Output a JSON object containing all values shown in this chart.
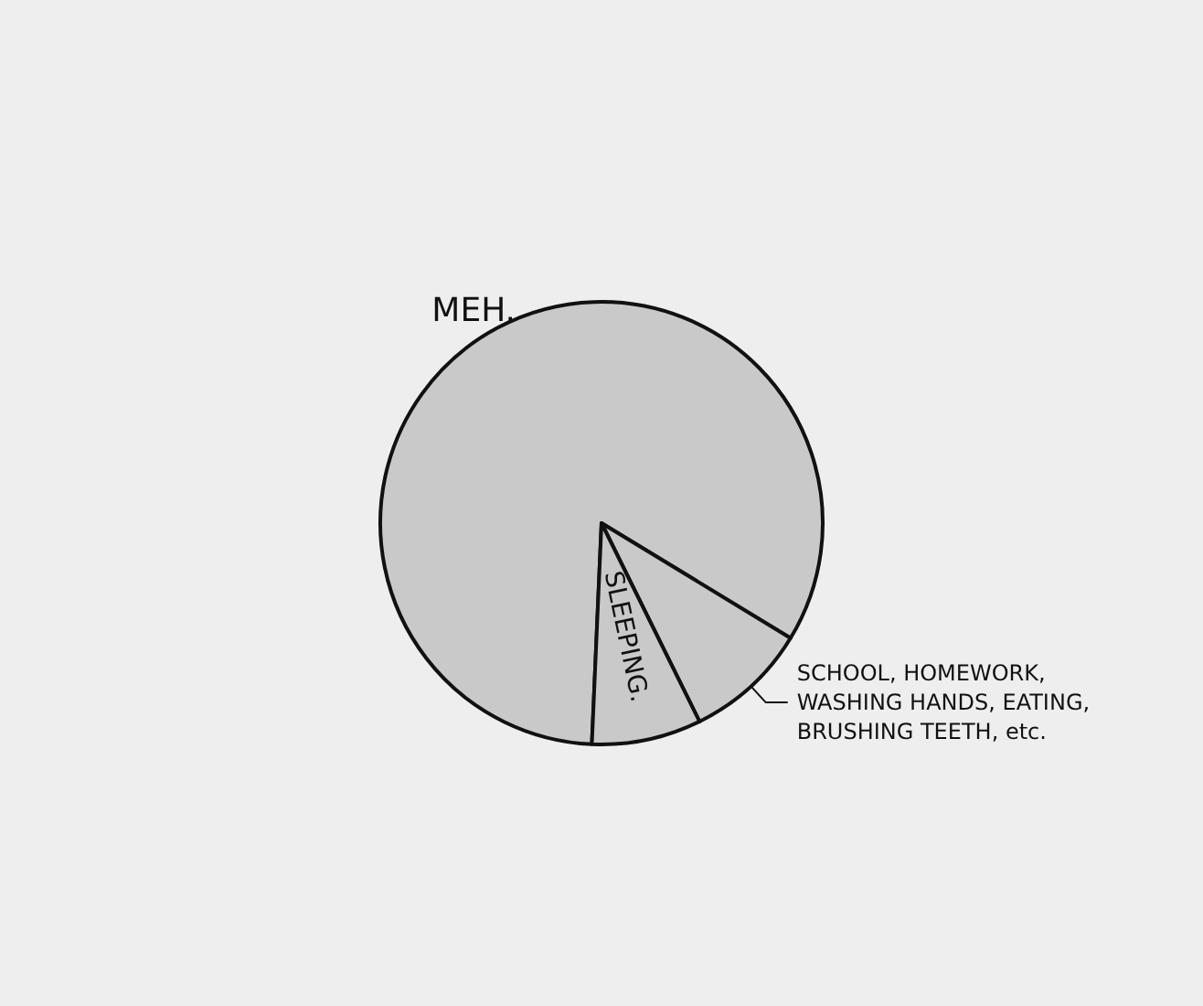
{
  "chart_data": {
    "type": "pie",
    "categories": [
      "MEH.",
      "SCHOOL, HOMEWORK, WASHING HANDS, EATING, BRUSHING TEETH, etc.",
      "SLEEPING."
    ],
    "values": [
      83,
      9,
      8
    ],
    "colors": [
      "#c9c9c9",
      "#c9c9c9",
      "#c9c9c9"
    ]
  }
}
